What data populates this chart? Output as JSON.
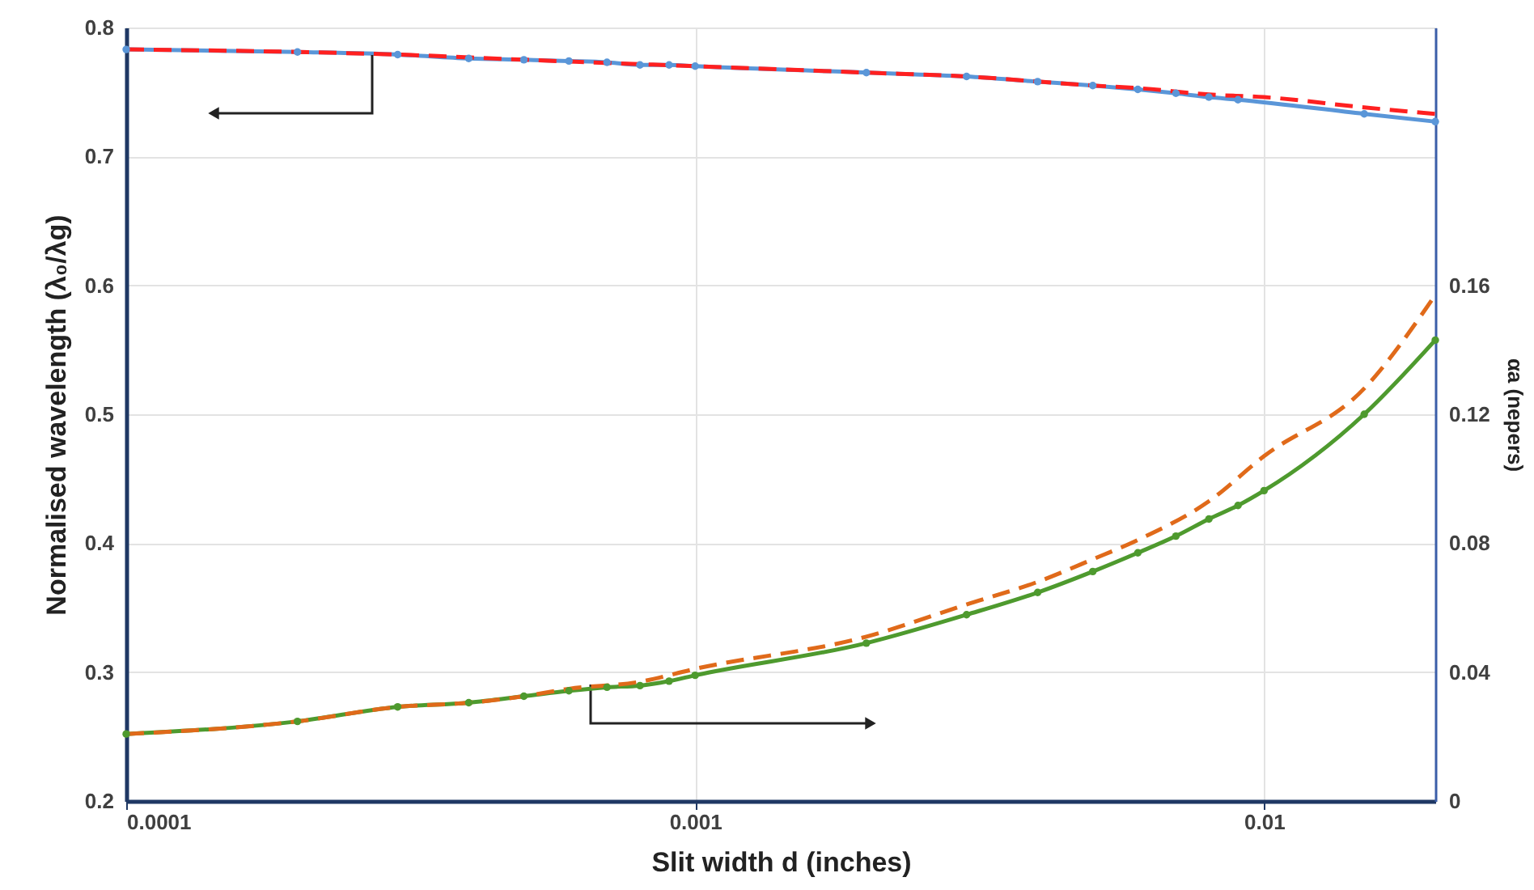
{
  "chart_data": {
    "type": "line",
    "xlabel": "Slit width d (inches)",
    "ylabel": "Normalised wavelength (λ₀/λg)",
    "y2label": "αa (nepers)",
    "log": "x",
    "grid": true,
    "xlim": [
      0.0001,
      0.02
    ],
    "xticks": [
      0.0001,
      0.001,
      0.01
    ],
    "ylim": [
      0.2,
      0.8
    ],
    "yticks": [
      0.2,
      0.3,
      0.4,
      0.5,
      0.6,
      0.7,
      0.8
    ],
    "y2lim": [
      0,
      0.24
    ],
    "y2ticks": [
      0,
      0.04,
      0.08,
      0.12,
      0.16
    ],
    "series": [
      {
        "color": "#5a96d8",
        "marker": "circle",
        "line_style": "solid",
        "x": [
          0.0001,
          0.0002,
          0.0003,
          0.0004,
          0.0005,
          0.0006,
          0.0007,
          0.0008,
          0.0009,
          0.001,
          0.002,
          0.003,
          0.004,
          0.005,
          0.006,
          0.007,
          0.008,
          0.009,
          0.015,
          0.02
        ],
        "values": [
          0.783,
          0.781,
          0.779,
          0.776,
          0.775,
          0.774,
          0.773,
          0.771,
          0.771,
          0.77,
          0.765,
          0.762,
          0.758,
          0.755,
          0.752,
          0.749,
          0.746,
          0.744,
          0.733,
          0.727
        ]
      },
      {
        "color": "#ff2020",
        "marker": "none",
        "line_style": "dashed",
        "x": [
          0.0001,
          0.0002,
          0.0003,
          0.0005,
          0.001,
          0.002,
          0.003,
          0.005,
          0.006,
          0.008,
          0.01,
          0.015,
          0.02
        ],
        "values": [
          0.783,
          0.781,
          0.779,
          0.775,
          0.77,
          0.765,
          0.762,
          0.755,
          0.753,
          0.748,
          0.746,
          0.738,
          0.733
        ]
      },
      {
        "color": "#4e9a2e",
        "marker": "circle",
        "line_style": "solid",
        "axis": "y2",
        "x": [
          0.0001,
          0.0002,
          0.0003,
          0.0004,
          0.0005,
          0.0006,
          0.0007,
          0.0008,
          0.0009,
          0.001,
          0.002,
          0.003,
          0.004,
          0.005,
          0.006,
          0.007,
          0.008,
          0.009,
          0.01,
          0.015,
          0.02
        ],
        "values": [
          0.0208,
          0.0247,
          0.0292,
          0.0305,
          0.0325,
          0.0342,
          0.0353,
          0.0358,
          0.0372,
          0.039,
          0.049,
          0.0578,
          0.0647,
          0.0712,
          0.077,
          0.0822,
          0.0875,
          0.0917,
          0.0963,
          0.12,
          0.143
        ]
      },
      {
        "color": "#e06a1a",
        "marker": "none",
        "line_style": "dashed",
        "axis": "y2",
        "x": [
          0.0001,
          0.0002,
          0.0003,
          0.0004,
          0.0005,
          0.0006,
          0.0008,
          0.001,
          0.002,
          0.003,
          0.004,
          0.005,
          0.006,
          0.008,
          0.01,
          0.015,
          0.02
        ],
        "values": [
          0.0208,
          0.0247,
          0.0292,
          0.0305,
          0.0325,
          0.0348,
          0.037,
          0.041,
          0.051,
          0.061,
          0.068,
          0.075,
          0.081,
          0.093,
          0.107,
          0.128,
          0.157
        ]
      }
    ]
  }
}
